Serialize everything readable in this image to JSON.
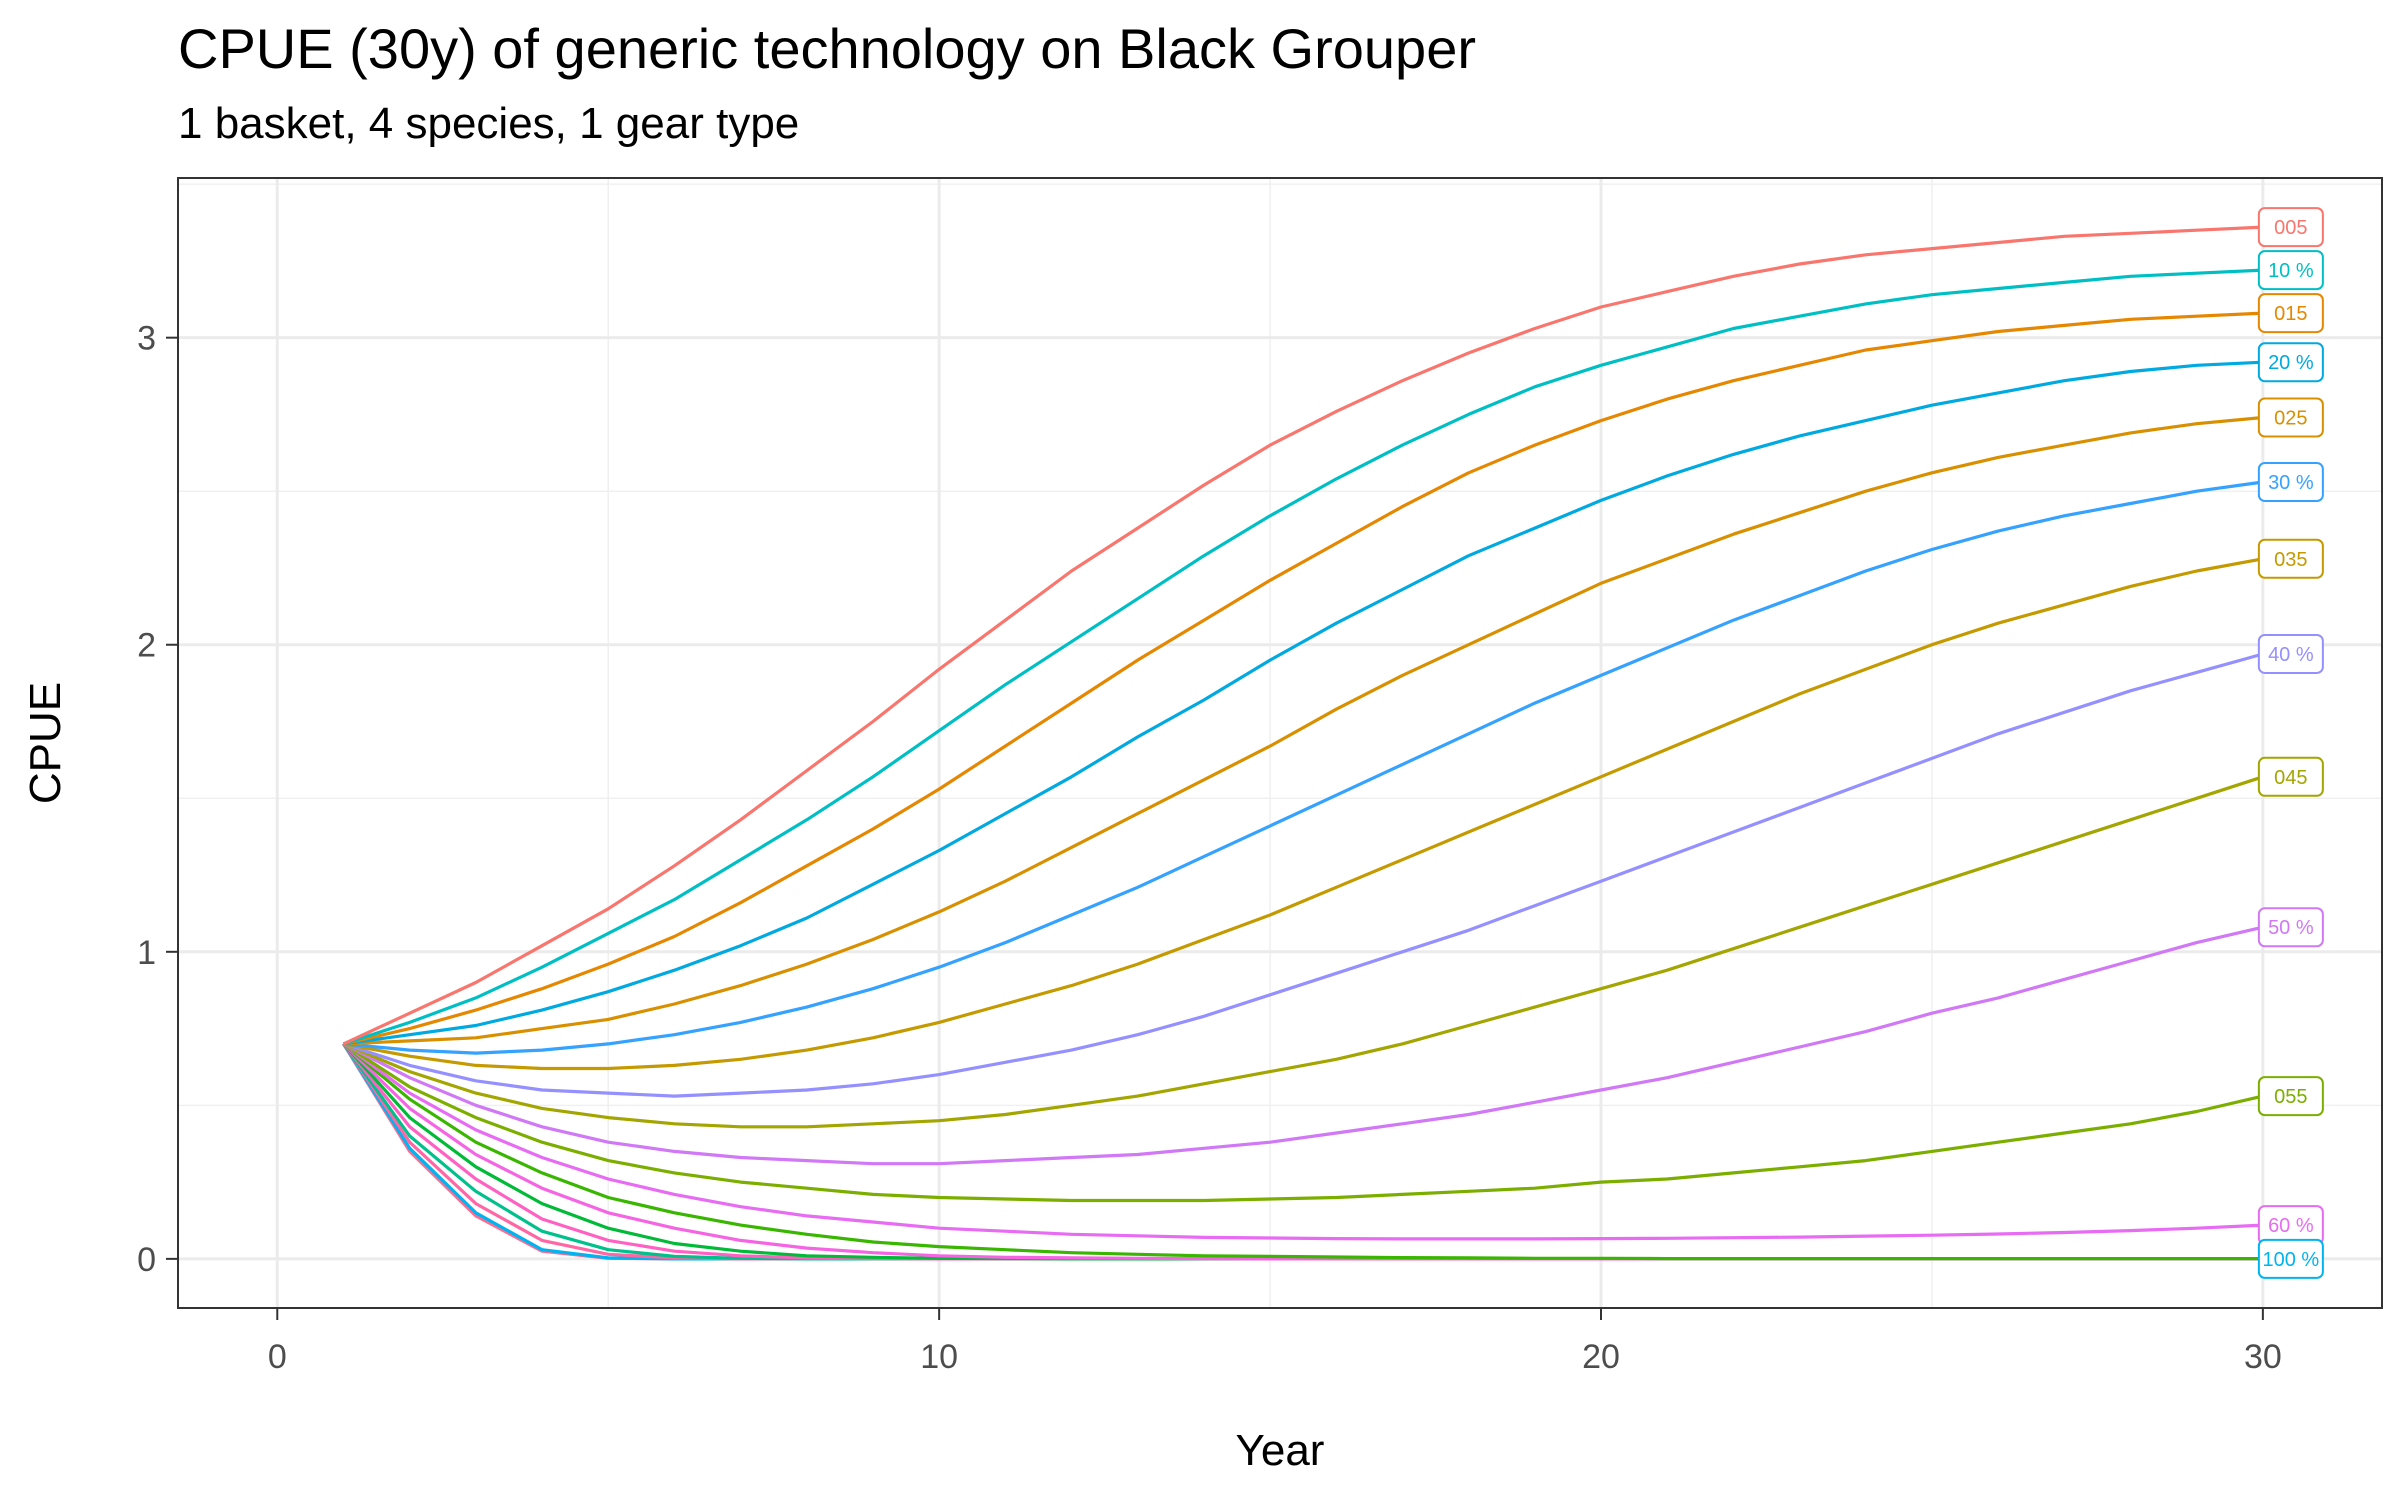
{
  "chart_data": {
    "type": "line",
    "title": "CPUE (30y) of generic technology on Black Grouper",
    "subtitle": "1 basket, 4 species, 1 gear type",
    "xlabel": "Year",
    "ylabel": "CPUE",
    "xlim": [
      -1.5,
      31.8
    ],
    "ylim": [
      -0.16,
      3.52
    ],
    "x_ticks": [
      0,
      10,
      20,
      30
    ],
    "x_tick_labels": [
      "0",
      "10",
      "20",
      "30"
    ],
    "y_ticks": [
      0,
      1,
      2,
      3
    ],
    "y_tick_labels": [
      "0",
      "1",
      "2",
      "3"
    ],
    "grid": true,
    "legend": "none",
    "x": [
      1,
      2,
      3,
      4,
      5,
      6,
      7,
      8,
      9,
      10,
      11,
      12,
      13,
      14,
      15,
      16,
      17,
      18,
      19,
      20,
      21,
      22,
      23,
      24,
      25,
      26,
      27,
      28,
      29,
      30
    ],
    "series": [
      {
        "color": "#F8766D",
        "end_label": "005",
        "values": [
          0.7,
          0.8,
          0.9,
          1.02,
          1.14,
          1.28,
          1.43,
          1.59,
          1.75,
          1.92,
          2.08,
          2.24,
          2.38,
          2.52,
          2.65,
          2.76,
          2.86,
          2.95,
          3.03,
          3.1,
          3.15,
          3.2,
          3.24,
          3.27,
          3.29,
          3.31,
          3.33,
          3.34,
          3.35,
          3.36
        ]
      },
      {
        "color": "#00BFC4",
        "end_label": "10 %",
        "values": [
          0.7,
          0.77,
          0.85,
          0.95,
          1.06,
          1.17,
          1.3,
          1.43,
          1.57,
          1.72,
          1.87,
          2.01,
          2.15,
          2.29,
          2.42,
          2.54,
          2.65,
          2.75,
          2.84,
          2.91,
          2.97,
          3.03,
          3.07,
          3.11,
          3.14,
          3.16,
          3.18,
          3.2,
          3.21,
          3.22
        ]
      },
      {
        "color": "#E58700",
        "end_label": "015",
        "values": [
          0.7,
          0.75,
          0.81,
          0.88,
          0.96,
          1.05,
          1.16,
          1.28,
          1.4,
          1.53,
          1.67,
          1.81,
          1.95,
          2.08,
          2.21,
          2.33,
          2.45,
          2.56,
          2.65,
          2.73,
          2.8,
          2.86,
          2.91,
          2.96,
          2.99,
          3.02,
          3.04,
          3.06,
          3.07,
          3.08
        ]
      },
      {
        "color": "#00A9E0",
        "end_label": "20 %",
        "values": [
          0.7,
          0.73,
          0.76,
          0.81,
          0.87,
          0.94,
          1.02,
          1.11,
          1.22,
          1.33,
          1.45,
          1.57,
          1.7,
          1.82,
          1.95,
          2.07,
          2.18,
          2.29,
          2.38,
          2.47,
          2.55,
          2.62,
          2.68,
          2.73,
          2.78,
          2.82,
          2.86,
          2.89,
          2.91,
          2.92
        ]
      },
      {
        "color": "#D89000",
        "end_label": "025",
        "values": [
          0.7,
          0.71,
          0.72,
          0.75,
          0.78,
          0.83,
          0.89,
          0.96,
          1.04,
          1.13,
          1.23,
          1.34,
          1.45,
          1.56,
          1.67,
          1.79,
          1.9,
          2.0,
          2.1,
          2.2,
          2.28,
          2.36,
          2.43,
          2.5,
          2.56,
          2.61,
          2.65,
          2.69,
          2.72,
          2.74
        ]
      },
      {
        "color": "#35A2FF",
        "end_label": "30 %",
        "values": [
          0.7,
          0.68,
          0.67,
          0.68,
          0.7,
          0.73,
          0.77,
          0.82,
          0.88,
          0.95,
          1.03,
          1.12,
          1.21,
          1.31,
          1.41,
          1.51,
          1.61,
          1.71,
          1.81,
          1.9,
          1.99,
          2.08,
          2.16,
          2.24,
          2.31,
          2.37,
          2.42,
          2.46,
          2.5,
          2.53
        ]
      },
      {
        "color": "#C49A00",
        "end_label": "035",
        "values": [
          0.7,
          0.66,
          0.63,
          0.62,
          0.62,
          0.63,
          0.65,
          0.68,
          0.72,
          0.77,
          0.83,
          0.89,
          0.96,
          1.04,
          1.12,
          1.21,
          1.3,
          1.39,
          1.48,
          1.57,
          1.66,
          1.75,
          1.84,
          1.92,
          2.0,
          2.07,
          2.13,
          2.19,
          2.24,
          2.28
        ]
      },
      {
        "color": "#9590FF",
        "end_label": "40 %",
        "values": [
          0.7,
          0.63,
          0.58,
          0.55,
          0.54,
          0.53,
          0.54,
          0.55,
          0.57,
          0.6,
          0.64,
          0.68,
          0.73,
          0.79,
          0.86,
          0.93,
          1.0,
          1.07,
          1.15,
          1.23,
          1.31,
          1.39,
          1.47,
          1.55,
          1.63,
          1.71,
          1.78,
          1.85,
          1.91,
          1.97
        ]
      },
      {
        "color": "#A3A500",
        "end_label": "045",
        "values": [
          0.7,
          0.61,
          0.54,
          0.49,
          0.46,
          0.44,
          0.43,
          0.43,
          0.44,
          0.45,
          0.47,
          0.5,
          0.53,
          0.57,
          0.61,
          0.65,
          0.7,
          0.76,
          0.82,
          0.88,
          0.94,
          1.01,
          1.08,
          1.15,
          1.22,
          1.29,
          1.36,
          1.43,
          1.5,
          1.57
        ]
      },
      {
        "color": "#D078F5",
        "end_label": "50 %",
        "values": [
          0.7,
          0.59,
          0.5,
          0.43,
          0.38,
          0.35,
          0.33,
          0.32,
          0.31,
          0.31,
          0.32,
          0.33,
          0.34,
          0.36,
          0.38,
          0.41,
          0.44,
          0.47,
          0.51,
          0.55,
          0.59,
          0.64,
          0.69,
          0.74,
          0.8,
          0.85,
          0.91,
          0.97,
          1.03,
          1.08
        ]
      },
      {
        "color": "#7CAE00",
        "end_label": "055",
        "values": [
          0.7,
          0.56,
          0.46,
          0.38,
          0.32,
          0.28,
          0.25,
          0.23,
          0.21,
          0.2,
          0.195,
          0.19,
          0.19,
          0.19,
          0.195,
          0.2,
          0.21,
          0.22,
          0.23,
          0.25,
          0.26,
          0.28,
          0.3,
          0.32,
          0.35,
          0.38,
          0.41,
          0.44,
          0.48,
          0.53
        ]
      },
      {
        "color": "#E76BF3",
        "end_label": "60 %",
        "values": [
          0.7,
          0.54,
          0.42,
          0.33,
          0.26,
          0.21,
          0.17,
          0.14,
          0.12,
          0.1,
          0.09,
          0.08,
          0.075,
          0.07,
          0.068,
          0.066,
          0.065,
          0.065,
          0.065,
          0.066,
          0.067,
          0.069,
          0.071,
          0.074,
          0.077,
          0.081,
          0.086,
          0.092,
          0.1,
          0.11
        ]
      },
      {
        "color": "#39B600",
        "end_label": "",
        "values": [
          0.7,
          0.52,
          0.38,
          0.28,
          0.2,
          0.15,
          0.11,
          0.08,
          0.055,
          0.04,
          0.03,
          0.02,
          0.015,
          0.01,
          0.008,
          0.006,
          0.004,
          0.003,
          0.002,
          0.002,
          0.001,
          0.001,
          0.001,
          0.001,
          0.001,
          0.001,
          0.001,
          0.001,
          0.001,
          0.001
        ]
      },
      {
        "color": "#F564E3",
        "end_label": "",
        "values": [
          0.7,
          0.49,
          0.34,
          0.23,
          0.15,
          0.1,
          0.06,
          0.035,
          0.02,
          0.01,
          0.005,
          0.003,
          0.002,
          0.001,
          0,
          0,
          0,
          0,
          0,
          0,
          0,
          0,
          0,
          0,
          0,
          0,
          0,
          0,
          0,
          0
        ]
      },
      {
        "color": "#00BA38",
        "end_label": "",
        "values": [
          0.7,
          0.46,
          0.3,
          0.18,
          0.1,
          0.05,
          0.025,
          0.01,
          0.005,
          0.002,
          0.001,
          0,
          0,
          0,
          0,
          0,
          0,
          0,
          0,
          0,
          0,
          0,
          0,
          0,
          0,
          0,
          0,
          0,
          0,
          0
        ]
      },
      {
        "color": "#FF61C3",
        "end_label": "",
        "values": [
          0.7,
          0.43,
          0.26,
          0.13,
          0.06,
          0.025,
          0.01,
          0.003,
          0.001,
          0,
          0,
          0,
          0,
          0,
          0,
          0,
          0,
          0,
          0,
          0,
          0,
          0,
          0,
          0,
          0,
          0,
          0,
          0,
          0,
          0
        ]
      },
      {
        "color": "#00C08B",
        "end_label": "",
        "values": [
          0.7,
          0.4,
          0.22,
          0.09,
          0.03,
          0.008,
          0.002,
          0,
          0,
          0,
          0,
          0,
          0,
          0,
          0,
          0,
          0,
          0,
          0,
          0,
          0,
          0,
          0,
          0,
          0,
          0,
          0,
          0,
          0,
          0
        ]
      },
      {
        "color": "#FF67A4",
        "end_label": "",
        "values": [
          0.7,
          0.38,
          0.18,
          0.06,
          0.015,
          0.003,
          0,
          0,
          0,
          0,
          0,
          0,
          0,
          0,
          0,
          0,
          0,
          0,
          0,
          0,
          0,
          0,
          0,
          0,
          0,
          0,
          0,
          0,
          0,
          0
        ]
      },
      {
        "color": "#00B4EF",
        "end_label": "100 %",
        "values": [
          0.7,
          0.36,
          0.15,
          0.03,
          0.003,
          0,
          0,
          0,
          0,
          0,
          0,
          0,
          0,
          0,
          0,
          0,
          0,
          0,
          0,
          0,
          0,
          0,
          0,
          0,
          0,
          0,
          0,
          0,
          0,
          0
        ]
      },
      {
        "color": "#FF6C91",
        "end_label": "",
        "values": [
          0.7,
          0.35,
          0.14,
          0.025,
          0.002,
          0,
          0,
          0,
          0,
          0,
          0,
          0,
          0,
          0,
          0,
          0,
          0,
          0,
          0,
          0,
          0,
          0,
          0,
          0,
          0,
          0,
          0,
          0,
          0,
          0
        ]
      }
    ]
  }
}
